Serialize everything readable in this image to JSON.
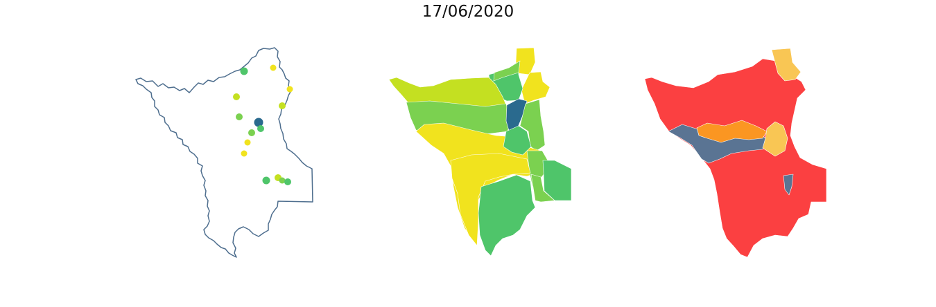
{
  "figure": {
    "title": "17/06/2020"
  },
  "colors": {
    "outline": "#4e6e8e",
    "dark_blue": "#2a6a8e",
    "green": "#4fc56a",
    "light_green": "#7bd150",
    "yellow_green": "#c4e021",
    "yellow": "#f1e31e",
    "red": "#fb4041",
    "orange": "#fb9622",
    "light_orange": "#f9c654",
    "slate_blue": "#5a7493"
  },
  "panels": [
    {
      "kind": "station-points",
      "stations": [
        {
          "color": "green"
        },
        {
          "color": "yellow"
        },
        {
          "color": "yellow"
        },
        {
          "color": "yellow_green"
        },
        {
          "color": "yellow_green"
        },
        {
          "color": "light_green"
        },
        {
          "color": "dark_blue"
        },
        {
          "color": "green"
        },
        {
          "color": "light_green"
        },
        {
          "color": "yellow"
        },
        {
          "color": "yellow"
        },
        {
          "color": "green"
        },
        {
          "color": "yellow_green"
        },
        {
          "color": "light_green"
        },
        {
          "color": "green"
        }
      ]
    },
    {
      "kind": "basin-choropleth",
      "regions": [
        {
          "color": "yellow"
        },
        {
          "color": "yellow"
        },
        {
          "color": "green"
        },
        {
          "color": "light_green"
        },
        {
          "color": "yellow_green"
        },
        {
          "color": "light_green"
        },
        {
          "color": "dark_blue"
        },
        {
          "color": "light_green"
        },
        {
          "color": "yellow"
        },
        {
          "color": "green"
        },
        {
          "color": "light_green"
        },
        {
          "color": "green"
        },
        {
          "color": "yellow"
        },
        {
          "color": "green"
        },
        {
          "color": "light_green"
        }
      ]
    },
    {
      "kind": "basin-choropleth",
      "regions": [
        {
          "color": "red"
        },
        {
          "color": "light_orange"
        },
        {
          "color": "slate_blue"
        },
        {
          "color": "orange"
        },
        {
          "color": "light_orange"
        },
        {
          "color": "slate_blue"
        }
      ]
    }
  ]
}
